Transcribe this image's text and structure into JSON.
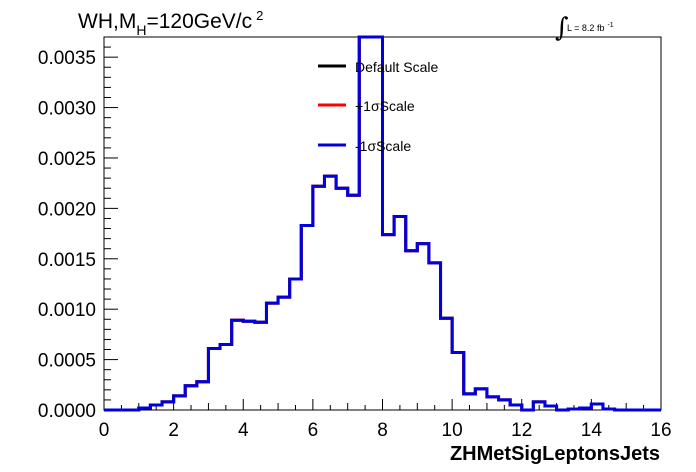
{
  "chart_data": {
    "type": "line",
    "title_main": "WH,M",
    "title_sub": "H",
    "title_rest": "=120GeV/c",
    "title_sup": "2",
    "lumi_label": "L = 8.2 fb",
    "lumi_sup": "-1",
    "xlabel": "ZHMetSigLeptonsJets",
    "ylabel": "",
    "xlim": [
      0,
      16
    ],
    "ylim": [
      0,
      0.0037
    ],
    "x_ticks": [
      "0",
      "2",
      "4",
      "6",
      "8",
      "10",
      "12",
      "14",
      "16"
    ],
    "y_ticks": [
      "0.0000",
      "0.0005",
      "0.0010",
      "0.0015",
      "0.0020",
      "0.0025",
      "0.0030",
      "0.0035"
    ],
    "y_tick_values": [
      0,
      0.0005,
      0.001,
      0.0015,
      0.002,
      0.0025,
      0.003,
      0.0035
    ],
    "grid": false,
    "legend_position": "top-center",
    "bin_edges": [
      0,
      0.333,
      0.667,
      1.0,
      1.333,
      1.667,
      2.0,
      2.333,
      2.667,
      3.0,
      3.333,
      3.667,
      4.0,
      4.333,
      4.667,
      5.0,
      5.333,
      5.667,
      6.0,
      6.333,
      6.667,
      7.0,
      7.333,
      7.667,
      8.0,
      8.333,
      8.667,
      9.0,
      9.333,
      9.667,
      10.0,
      10.333,
      10.667,
      11.0,
      11.333,
      11.667,
      12.0,
      12.333,
      12.667,
      13.0,
      13.333,
      13.667,
      14.0,
      14.333,
      14.667,
      15.0,
      15.333,
      15.667,
      16.0
    ],
    "series": [
      {
        "name": "Default Scale",
        "color": "#000000",
        "values": [
          0,
          0,
          0,
          2e-05,
          5e-05,
          8e-05,
          0.00014,
          0.00024,
          0.00028,
          0.00061,
          0.00065,
          0.00089,
          0.00088,
          0.00087,
          0.00106,
          0.00112,
          0.0013,
          0.00183,
          0.00222,
          0.00232,
          0.0022,
          0.00213,
          0.0037,
          0.0037,
          0.00174,
          0.00192,
          0.00158,
          0.00165,
          0.00146,
          0.00091,
          0.00057,
          0.00016,
          0.00021,
          0.00013,
          0.0001,
          5e-05,
          0.0,
          8e-05,
          4e-05,
          0.0,
          1e-05,
          2e-05,
          6e-05,
          1e-05,
          0.0,
          0.0,
          0.0,
          0.0
        ]
      },
      {
        "name": "+1σScale",
        "color": "#ff0000",
        "values": [
          0,
          0,
          0,
          2e-05,
          5e-05,
          8e-05,
          0.00014,
          0.00024,
          0.00028,
          0.00061,
          0.00065,
          0.00089,
          0.00088,
          0.00087,
          0.00106,
          0.00112,
          0.0013,
          0.00183,
          0.00222,
          0.00232,
          0.0022,
          0.00213,
          0.0037,
          0.0037,
          0.00174,
          0.00192,
          0.00158,
          0.00165,
          0.00146,
          0.00091,
          0.00057,
          0.00016,
          0.00021,
          0.00013,
          0.0001,
          5e-05,
          0.0,
          8e-05,
          4e-05,
          0.0,
          1e-05,
          2e-05,
          6e-05,
          1e-05,
          0.0,
          0.0,
          0.0,
          0.0
        ]
      },
      {
        "name": "-1σScale",
        "color": "#0000dd",
        "values": [
          0,
          0,
          0,
          2e-05,
          5e-05,
          8e-05,
          0.00014,
          0.00024,
          0.00028,
          0.00061,
          0.00065,
          0.00089,
          0.00088,
          0.00087,
          0.00106,
          0.00112,
          0.0013,
          0.00183,
          0.00222,
          0.00232,
          0.0022,
          0.00213,
          0.0037,
          0.0037,
          0.00174,
          0.00192,
          0.00158,
          0.00165,
          0.00146,
          0.00091,
          0.00057,
          0.00016,
          0.00021,
          0.00013,
          0.0001,
          5e-05,
          0.0,
          8e-05,
          4e-05,
          0.0,
          1e-05,
          2e-05,
          6e-05,
          1e-05,
          0.0,
          0.0,
          0.0,
          0.0
        ]
      }
    ]
  }
}
